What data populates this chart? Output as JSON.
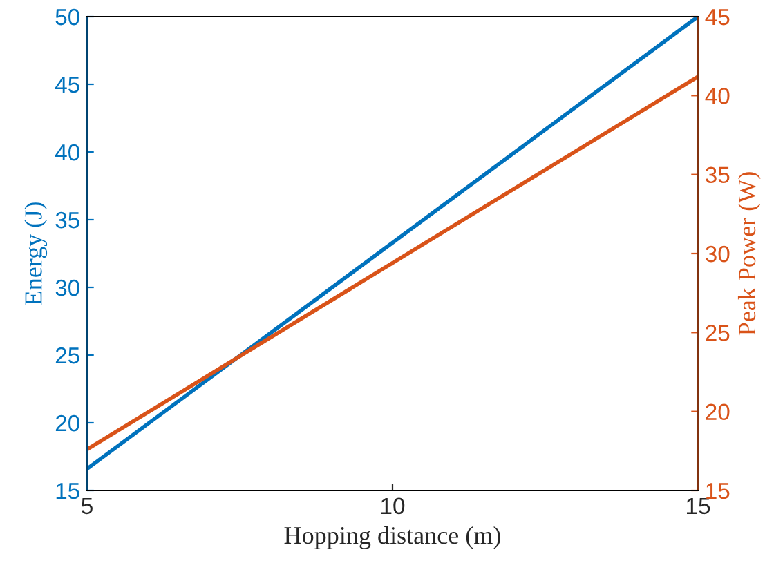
{
  "chart_data": {
    "type": "line",
    "xlabel": "Hopping distance (m)",
    "ylabel": "Energy (J)",
    "y2label": "Peak Power (W)",
    "x": [
      5,
      15
    ],
    "series": [
      {
        "color": "#0072bd",
        "values": [
          16.6,
          50
        ]
      },
      {
        "color": "#d95319",
        "values": [
          17.6,
          41.2
        ],
        "axis": "y2"
      }
    ],
    "xlim": [
      5,
      15
    ],
    "xticks": [
      5,
      10,
      15
    ],
    "ylim": [
      15,
      50
    ],
    "yticks": [
      15,
      20,
      25,
      30,
      35,
      40,
      45,
      50
    ],
    "y2lim": [
      15,
      45
    ],
    "y2ticks": [
      15,
      20,
      25,
      30,
      35,
      40,
      45
    ],
    "grid": false,
    "legend": false,
    "marker": "none",
    "line_style": "solid"
  }
}
